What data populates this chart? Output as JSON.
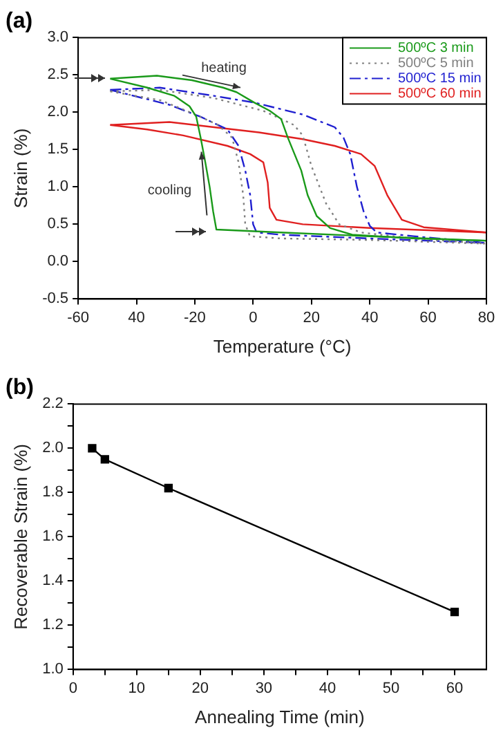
{
  "chart_data": [
    {
      "type": "line",
      "title": "(a)",
      "xlabel": "Temperature (°C)",
      "ylabel": "Strain (%)",
      "xlim": [
        -60,
        80
      ],
      "xticks": [
        -60,
        {
          "value": -40,
          "label": "40"
        },
        -20,
        0,
        20,
        40,
        60,
        80
      ],
      "ylim": [
        -0.5,
        3.0
      ],
      "yticks": [
        {
          "value": -0.5,
          "label": "-0.5"
        },
        {
          "value": 0,
          "label": "0.0"
        },
        {
          "value": 0.5,
          "label": "0.5"
        },
        {
          "value": 1,
          "label": "1.0"
        },
        {
          "value": 1.5,
          "label": "1.5"
        },
        {
          "value": 2,
          "label": "2.0"
        },
        {
          "value": 2.5,
          "label": "2.5"
        },
        {
          "value": 3,
          "label": "3.0"
        }
      ],
      "grid": false,
      "legend": "top right",
      "marker": "none",
      "annotations": [
        "heating",
        "cooling"
      ],
      "series": [
        {
          "name": "500ºC 3 min",
          "color": "#1a9a1a",
          "line_style": "solid",
          "x": [
            -49,
            -33,
            -21,
            -10.3,
            -5.7,
            0.4,
            5.7,
            9.6,
            11.9,
            14.2,
            16.5,
            18.7,
            21.8,
            26.4,
            34,
            55,
            80
          ],
          "values": [
            2.45,
            2.49,
            2.43,
            2.33,
            2.27,
            2.13,
            2.02,
            1.91,
            1.66,
            1.44,
            1.22,
            0.89,
            0.61,
            0.45,
            0.36,
            0.31,
            0.28
          ]
        },
        {
          "color": "#1a9a1a",
          "line_style": "solid",
          "x": [
            -49,
            -36.3,
            -27,
            -21.8,
            -19.5,
            -18,
            -16.4,
            -14.9,
            -13.7,
            -12.6,
            9.6,
            40,
            80
          ],
          "values": [
            2.45,
            2.33,
            2.22,
            2.08,
            1.94,
            1.66,
            1.33,
            1.0,
            0.67,
            0.43,
            0.39,
            0.34,
            0.28
          ]
        },
        {
          "name": "500ºC 5 min",
          "color": "#808080",
          "line_style": "dotted",
          "x": [
            -49,
            -32,
            -13.4,
            3.5,
            14,
            17,
            20,
            25,
            29.5,
            37,
            55,
            80
          ],
          "values": [
            2.28,
            2.3,
            2.19,
            2.02,
            1.83,
            1.69,
            1.28,
            0.78,
            0.5,
            0.39,
            0.31,
            0.24
          ]
        },
        {
          "color": "#808080",
          "line_style": "dotted",
          "x": [
            -49,
            -31.7,
            -21,
            -12,
            -7.2,
            -5,
            -3.4,
            -2.7,
            -1.1,
            9.6,
            40,
            80
          ],
          "values": [
            2.28,
            2.16,
            1.99,
            1.83,
            1.66,
            1.33,
            0.89,
            0.5,
            0.34,
            0.31,
            0.29,
            0.24
          ]
        },
        {
          "name": "500ºC 15 min",
          "color": "#1f1fd0",
          "line_style": "dashed",
          "x": [
            -49,
            -32,
            -13.4,
            0.4,
            17,
            28,
            31,
            33.3,
            35.6,
            37.9,
            40,
            42.4,
            55,
            80
          ],
          "values": [
            2.3,
            2.33,
            2.22,
            2.13,
            1.97,
            1.8,
            1.66,
            1.44,
            1.0,
            0.67,
            0.48,
            0.39,
            0.34,
            0.25
          ]
        },
        {
          "color": "#1f1fd0",
          "line_style": "dashed",
          "x": [
            -49,
            -28.7,
            -18,
            -8.8,
            -5,
            -2.7,
            -1,
            0,
            1.2,
            9.6,
            40,
            80
          ],
          "values": [
            2.3,
            2.1,
            1.94,
            1.77,
            1.55,
            1.22,
            0.89,
            0.5,
            0.39,
            0.36,
            0.31,
            0.25
          ]
        },
        {
          "name": "500ºC 60 min",
          "color": "#e02020",
          "line_style": "solid",
          "x": [
            -49,
            -28.7,
            -13.4,
            2,
            17,
            28,
            37,
            41.7,
            46,
            51,
            58.5,
            80
          ],
          "values": [
            1.83,
            1.87,
            1.8,
            1.73,
            1.64,
            1.55,
            1.44,
            1.28,
            0.89,
            0.56,
            0.46,
            0.39
          ]
        },
        {
          "color": "#e02020",
          "line_style": "solid",
          "x": [
            -49,
            -36.3,
            -24,
            -8.8,
            -1,
            3.5,
            5,
            5.7,
            8,
            17,
            40,
            80
          ],
          "values": [
            1.83,
            1.77,
            1.69,
            1.55,
            1.44,
            1.33,
            1.06,
            0.72,
            0.56,
            0.5,
            0.45,
            0.39
          ]
        }
      ]
    },
    {
      "type": "line",
      "title": "(b)",
      "xlabel": "Annealing Time (min)",
      "ylabel": "Recoverable Strain (%)",
      "xlim": [
        0,
        65
      ],
      "xticks": [
        0,
        {
          "value": 5,
          "label": null
        },
        10,
        {
          "value": 15,
          "label": null
        },
        20,
        {
          "value": 25,
          "label": null
        },
        30,
        {
          "value": 35,
          "label": null
        },
        40,
        {
          "value": 45,
          "label": null
        },
        50,
        {
          "value": 55,
          "label": null
        },
        60
      ],
      "ylim": [
        1.0,
        2.2
      ],
      "yticks": [
        {
          "value": 1,
          "label": "1.0"
        },
        {
          "value": 1.1,
          "label": null
        },
        {
          "value": 1.2,
          "label": "1.2"
        },
        {
          "value": 1.3,
          "label": null
        },
        {
          "value": 1.4,
          "label": "1.4"
        },
        {
          "value": 1.5,
          "label": null
        },
        {
          "value": 1.6,
          "label": "1.6"
        },
        {
          "value": 1.7,
          "label": null
        },
        {
          "value": 1.8,
          "label": "1.8"
        },
        {
          "value": 1.9,
          "label": null
        },
        {
          "value": 2,
          "label": "2.0"
        },
        {
          "value": 2.1,
          "label": null
        },
        {
          "value": 2.2,
          "label": "2.2"
        }
      ],
      "grid": false,
      "marker": "square",
      "x": [
        3,
        5,
        15,
        60
      ],
      "series": [
        {
          "color": "#000000",
          "values": [
            2.0,
            1.95,
            1.82,
            1.26
          ]
        }
      ]
    }
  ]
}
